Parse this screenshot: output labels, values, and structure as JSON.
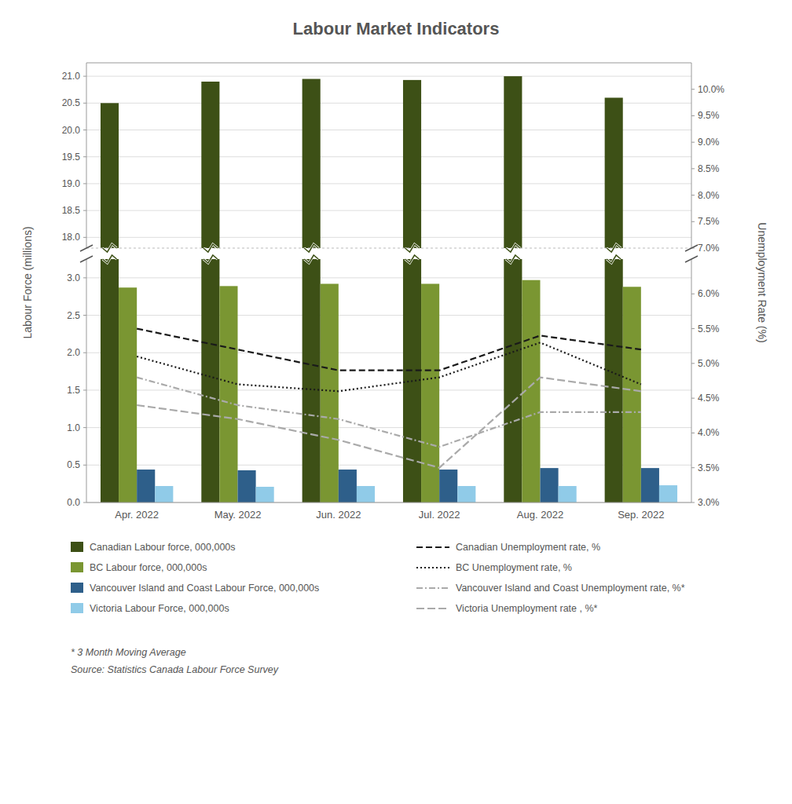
{
  "chart_data": [
    {
      "type": "bar",
      "title": "Labour Market Indicators",
      "ylabel": "Labour Force (millions)",
      "y2label": "Unemployment Rate (%)",
      "categories": [
        "Apr. 2022",
        "May. 2022",
        "Jun. 2022",
        "Jul. 2022",
        "Aug. 2022",
        "Sep. 2022"
      ],
      "series": [
        {
          "name": "Canadian Labour force, 000,000s",
          "color": "#3d5016",
          "values": [
            20.5,
            20.9,
            20.95,
            20.93,
            21.0,
            20.6
          ]
        }
      ],
      "ylim": [
        17.8,
        21.25
      ],
      "yticks": [
        {
          "value": 18.0,
          "label": "18.0"
        },
        {
          "value": 18.5,
          "label": "18.5"
        },
        {
          "value": 19.0,
          "label": "19.0"
        },
        {
          "value": 19.5,
          "label": "19.5"
        },
        {
          "value": 20.0,
          "label": "20.0"
        },
        {
          "value": 20.5,
          "label": "20.5"
        },
        {
          "value": 21.0,
          "label": "21.0"
        }
      ],
      "y2lim": [
        7.0,
        10.5
      ],
      "y2ticks": [
        {
          "value": 7.0,
          "label": "7.0%"
        },
        {
          "value": 7.5,
          "label": "7.5%"
        },
        {
          "value": 8.0,
          "label": "8.0%"
        },
        {
          "value": 8.5,
          "label": "8.5%"
        },
        {
          "value": 9.0,
          "label": "9.0%"
        },
        {
          "value": 9.5,
          "label": "9.5%"
        },
        {
          "value": 10.0,
          "label": "10.0%"
        }
      ],
      "grid": true,
      "tick_labels": "y",
      "legend": "bottom"
    },
    {
      "type": "bar",
      "categories": [
        "Apr. 2022",
        "May. 2022",
        "Jun. 2022",
        "Jul. 2022",
        "Aug. 2022",
        "Sep. 2022"
      ],
      "series": [
        {
          "name": "BC Labour force, 000,000s",
          "color": "#7a9632",
          "values": [
            2.87,
            2.89,
            2.92,
            2.92,
            2.97,
            2.88
          ]
        },
        {
          "name": "Vancouver Island and Coast Labour Force, 000,000s",
          "color": "#2e5f8a",
          "values": [
            0.44,
            0.43,
            0.44,
            0.44,
            0.46,
            0.46
          ]
        },
        {
          "name": "Victoria Labour Force, 000,000s",
          "color": "#90cbe8",
          "values": [
            0.22,
            0.21,
            0.22,
            0.22,
            0.22,
            0.23
          ]
        },
        {
          "name": "Canadian Unemployment rate, %",
          "type": "line",
          "axis": "y2",
          "color": "#1a1a1a",
          "line_style": "dashed",
          "values": [
            5.5,
            5.2,
            4.9,
            4.9,
            5.4,
            5.2
          ]
        },
        {
          "name": "BC Unemployment rate, %",
          "type": "line",
          "axis": "y2",
          "color": "#1a1a1a",
          "line_style": "dotted",
          "values": [
            5.1,
            4.7,
            4.6,
            4.8,
            5.3,
            4.7
          ]
        },
        {
          "name": "Vancouver Island and Coast Unemployment rate, %*",
          "type": "line",
          "axis": "y2",
          "color": "#aaaaaa",
          "line_style": "dashdot",
          "values": [
            4.8,
            4.4,
            4.2,
            3.8,
            4.3,
            4.3
          ]
        },
        {
          "name": "Victoria Unemployment rate , %*",
          "type": "line",
          "axis": "y2",
          "color": "#aaaaaa",
          "line_style": "longdash",
          "values": [
            4.4,
            4.2,
            3.9,
            3.5,
            4.8,
            4.6
          ]
        }
      ],
      "ylim": [
        0.0,
        3.25
      ],
      "yticks": [
        {
          "value": 0.0,
          "label": "0.0"
        },
        {
          "value": 0.5,
          "label": "0.5"
        },
        {
          "value": 1.0,
          "label": "1.0"
        },
        {
          "value": 1.5,
          "label": "1.5"
        },
        {
          "value": 2.0,
          "label": "2.0"
        },
        {
          "value": 2.5,
          "label": "2.5"
        },
        {
          "value": 3.0,
          "label": "3.0"
        }
      ],
      "y2lim": [
        3.0,
        6.5
      ],
      "y2ticks": [
        {
          "value": 3.0,
          "label": "3.0%"
        },
        {
          "value": 3.5,
          "label": "3.5%"
        },
        {
          "value": 4.0,
          "label": "4.0%"
        },
        {
          "value": 4.5,
          "label": "4.5%"
        },
        {
          "value": 5.0,
          "label": "5.0%"
        },
        {
          "value": 5.5,
          "label": "5.5%"
        },
        {
          "value": 6.0,
          "label": "6.0%"
        }
      ],
      "grid": true,
      "legend": "bottom",
      "annotations": [
        "* 3 Month Moving Average",
        "Source: Statistics Canada Labour Force Survey"
      ]
    }
  ]
}
